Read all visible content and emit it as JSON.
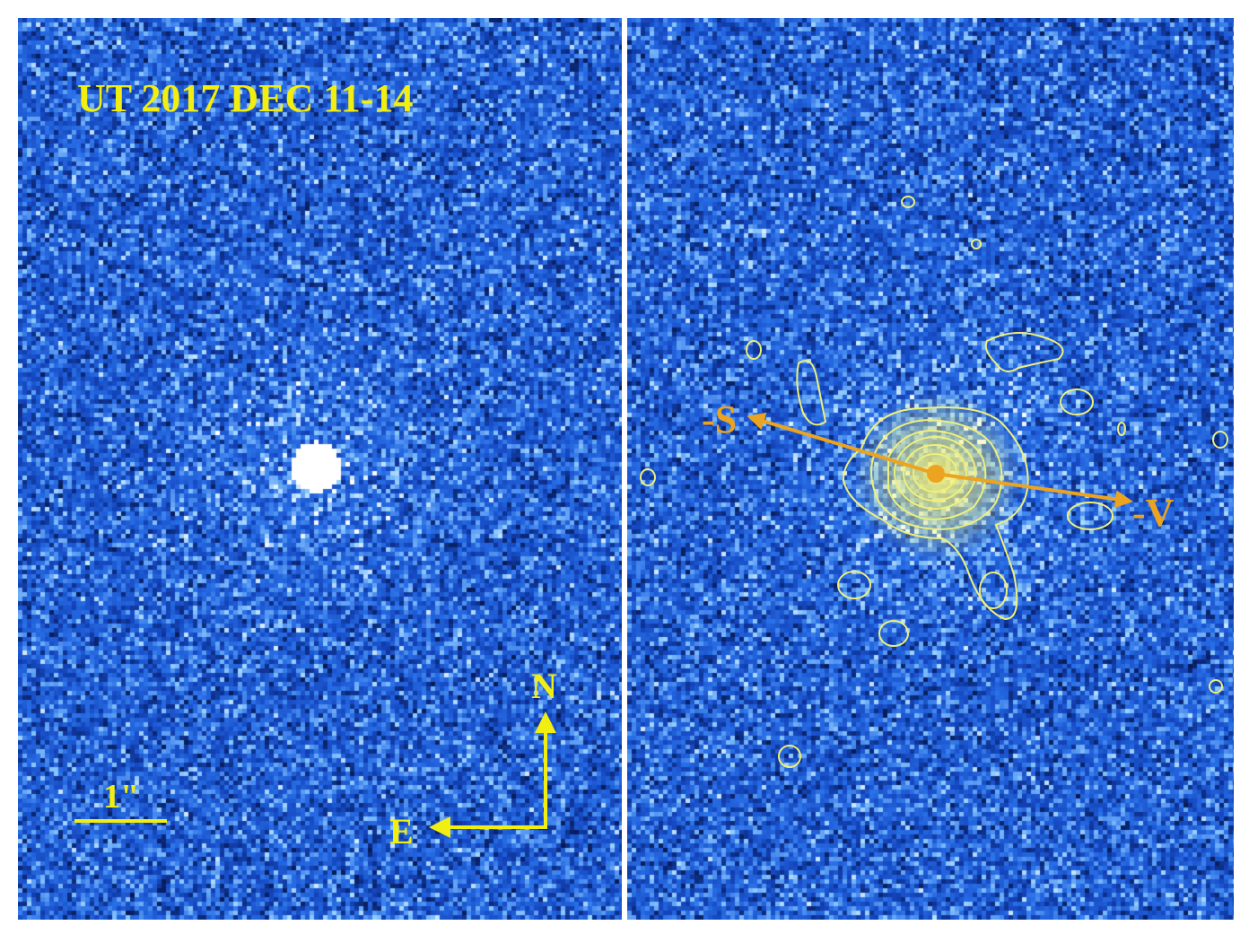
{
  "left_panel": {
    "date_label": "UT 2017 DEC 11-14",
    "scale_bar_label": "1\"",
    "compass": {
      "north": "N",
      "east": "E"
    }
  },
  "right_panel": {
    "antisolar_label": "-S",
    "antivelocity_label": "-V"
  },
  "colors": {
    "annotation_yellow": "#f2ee10",
    "vector_orange": "#eca420",
    "contour_yellow": "#eef07a",
    "background_blue": "#1f62d4"
  }
}
